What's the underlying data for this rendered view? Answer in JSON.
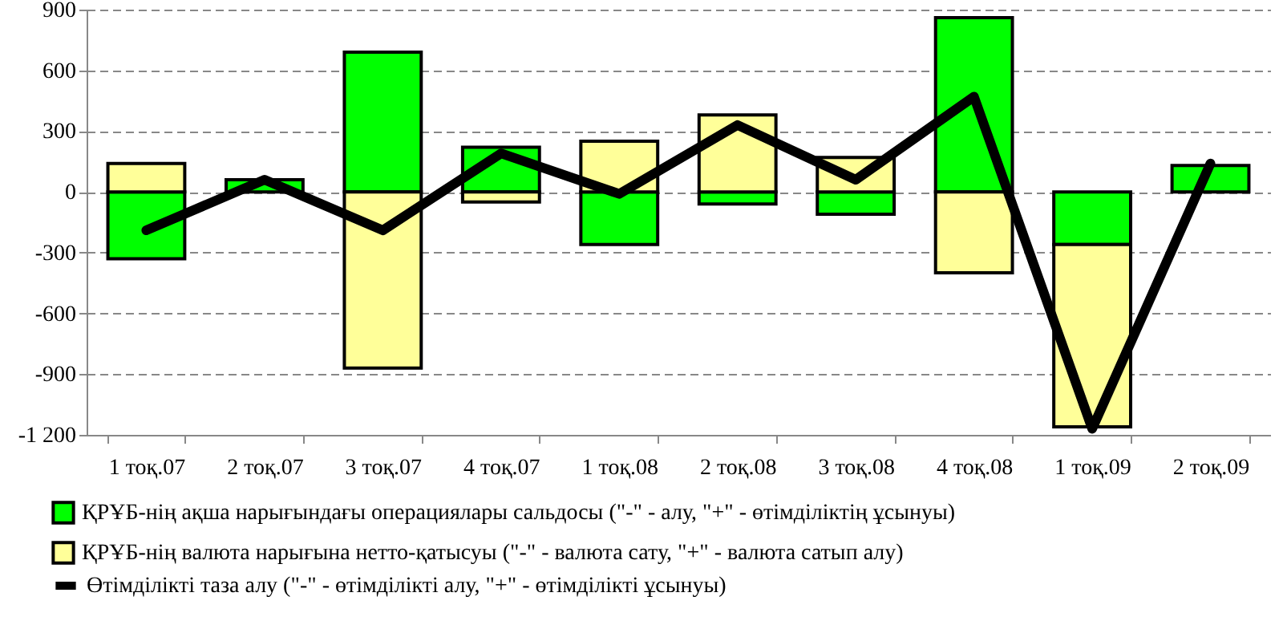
{
  "chart_data": {
    "type": "bar",
    "stacked": true,
    "categories": [
      "1 тоқ.07",
      "2 тоқ.07",
      "3 тоқ.07",
      "4 тоқ.07",
      "1 тоқ.08",
      "2 тоқ.08",
      "3 тоқ.08",
      "4 тоқ.08",
      "1 тоқ.09",
      "2 тоқ.09"
    ],
    "series": [
      {
        "name": "ҚРҰБ-нің ақша нарығындағы операциялары сальдосы (\"-\" - алу, \"+\" - өтімділіктің ұсынуы)",
        "color": "#00ff00",
        "values": [
          -330,
          60,
          690,
          220,
          -260,
          -60,
          -110,
          860,
          -260,
          130
        ]
      },
      {
        "name": "ҚРҰБ-нің валюта нарығына нетто-қатысуы (\"-\" - валюта сату, \"+\" - валюта сатып алу)",
        "color": "#ffff99",
        "values": [
          140,
          null,
          -870,
          -50,
          250,
          380,
          170,
          -400,
          -900,
          null
        ]
      },
      {
        "name": "Өтімділікті таза алу (\"-\" - өтімділікті алу, \"+\" - өтімділікті ұсынуы)",
        "type": "line",
        "color": "#000000",
        "values": [
          -190,
          60,
          -190,
          190,
          -10,
          330,
          60,
          470,
          -1170,
          140
        ]
      }
    ],
    "ylim": [
      -1200,
      900
    ],
    "yticks": [
      {
        "value": -1200,
        "label": "-1 200"
      },
      {
        "value": -900,
        "label": "-900"
      },
      {
        "value": -600,
        "label": "-600"
      },
      {
        "value": -300,
        "label": "-300"
      },
      0,
      {
        "value": 300,
        "label": "300"
      },
      {
        "value": 600,
        "label": "600"
      },
      {
        "value": 900,
        "label": "900"
      }
    ],
    "grid": "y",
    "legend": "bottom"
  }
}
